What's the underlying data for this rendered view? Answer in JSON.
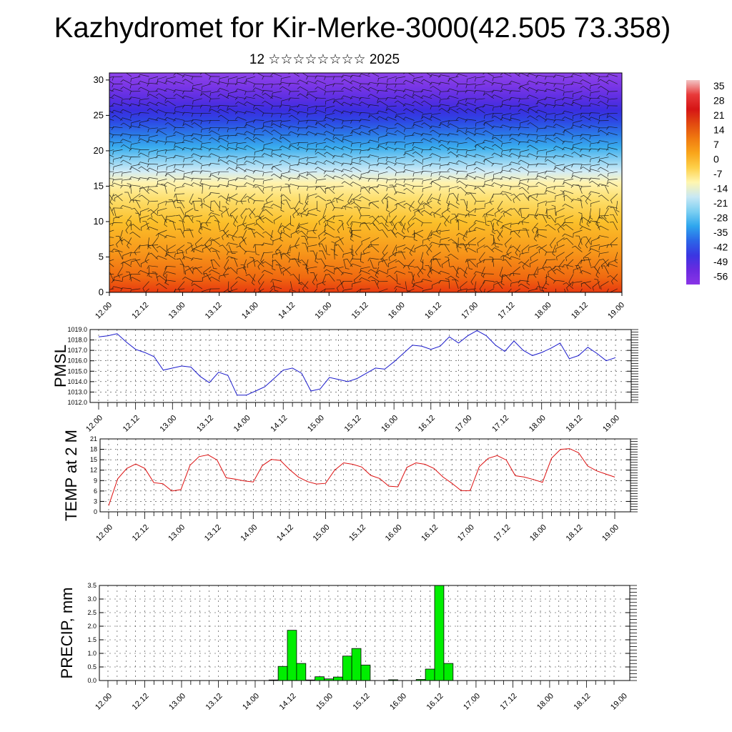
{
  "title": "Kazhydromet for Kir-Merke-3000(42.505 73.358)",
  "subtitle": "12 ☆☆☆☆☆☆☆☆ 2025",
  "colors": {
    "pmsl_line": "#1a1acc",
    "temp_line": "#dd1111",
    "precip_bar": "#00ee00",
    "grid": "#000000"
  },
  "chart_data": [
    {
      "type": "heatmap",
      "name": "cross-section",
      "x_ticks": [
        "12.00",
        "12.12",
        "13.00",
        "13.12",
        "14.00",
        "14.12",
        "15.00",
        "15.12",
        "16.00",
        "16.12",
        "17.00",
        "17.12",
        "18.00",
        "18.12",
        "19.00"
      ],
      "y_ticks": [
        "0",
        "5",
        "10",
        "15",
        "20",
        "25",
        "30"
      ],
      "ylim": [
        0,
        31
      ],
      "colorbar": {
        "labels": [
          "35",
          "28",
          "21",
          "14",
          "7",
          "0",
          "-7",
          "-14",
          "-21",
          "-28",
          "-35",
          "-42",
          "-49",
          "-56"
        ],
        "stops": [
          "#f2c4c4",
          "#e83a3a",
          "#d51515",
          "#e24a10",
          "#f07a10",
          "#f9a51a",
          "#fdd04a",
          "#fff6b0",
          "#c8e8f4",
          "#7ccff2",
          "#2ea6ee",
          "#2b66e8",
          "#3a36e2",
          "#6a2ae0",
          "#8a34e6"
        ]
      },
      "wind_barbs": true
    },
    {
      "type": "line",
      "name": "pmsl",
      "ylabel": "PMSL",
      "ylim": [
        1012,
        1019
      ],
      "y_ticks": [
        "1012.0",
        "1013.0",
        "1014.0",
        "1015.0",
        "1016.0",
        "1017.0",
        "1018.0",
        "1019.0"
      ],
      "x_ticks": [
        "12.00",
        "12.12",
        "13.00",
        "13.12",
        "14.00",
        "14.12",
        "15.00",
        "15.12",
        "16.00",
        "16.12",
        "17.00",
        "17.12",
        "18.00",
        "18.12",
        "19.00"
      ],
      "x_step_hours": 3,
      "values": [
        1018.3,
        1018.4,
        1018.6,
        1017.8,
        1017.1,
        1016.8,
        1016.4,
        1015.1,
        1015.3,
        1015.5,
        1015.4,
        1014.5,
        1013.9,
        1014.9,
        1014.6,
        1012.7,
        1012.7,
        1013.1,
        1013.5,
        1014.3,
        1015.1,
        1015.3,
        1014.8,
        1013.1,
        1013.3,
        1014.4,
        1014.2,
        1014.0,
        1014.3,
        1014.8,
        1015.3,
        1015.2,
        1015.9,
        1016.7,
        1017.5,
        1017.4,
        1017.1,
        1017.4,
        1018.3,
        1017.7,
        1018.4,
        1018.9,
        1018.4,
        1017.5,
        1016.9,
        1017.9,
        1017.0,
        1016.5,
        1016.8,
        1017.2,
        1017.7,
        1016.2,
        1016.5,
        1017.3,
        1016.7,
        1016.0,
        1016.3
      ]
    },
    {
      "type": "line",
      "name": "temp",
      "ylabel": "TEMP at 2 M",
      "ylim": [
        0,
        21
      ],
      "y_ticks": [
        "0",
        "3",
        "6",
        "9",
        "12",
        "15",
        "18",
        "21"
      ],
      "x_ticks": [
        "12.00",
        "12.12",
        "13.00",
        "13.12",
        "14.00",
        "14.12",
        "15.00",
        "15.12",
        "16.00",
        "16.12",
        "17.00",
        "17.12",
        "18.00",
        "18.12",
        "19.00"
      ],
      "x_step_hours": 3,
      "values": [
        1.8,
        9.5,
        12.5,
        13.8,
        12.5,
        8.4,
        8.1,
        6.0,
        6.4,
        13.4,
        15.9,
        16.4,
        14.9,
        9.8,
        9.4,
        8.9,
        8.6,
        13.3,
        15.1,
        14.8,
        12.2,
        10.0,
        8.7,
        8.0,
        8.2,
        12.0,
        14.1,
        13.7,
        12.9,
        10.5,
        9.6,
        7.4,
        7.2,
        12.8,
        14.1,
        13.7,
        12.5,
        10.0,
        8.2,
        6.1,
        6.1,
        13.0,
        15.4,
        16.2,
        14.9,
        10.4,
        10.0,
        9.3,
        8.5,
        15.4,
        18.0,
        18.2,
        17.0,
        13.2,
        11.8,
        10.9,
        10.0
      ]
    },
    {
      "type": "bar",
      "name": "precip",
      "ylabel": "PRECIP, mm",
      "ylim": [
        0,
        3.5
      ],
      "y_ticks": [
        "0.0",
        "0.5",
        "1.0",
        "1.5",
        "2.0",
        "2.5",
        "3.0",
        "3.5"
      ],
      "x_ticks": [
        "12.00",
        "12.12",
        "13.00",
        "13.12",
        "14.00",
        "14.12",
        "15.00",
        "15.12",
        "16.00",
        "16.12",
        "17.00",
        "17.12",
        "18.00",
        "18.12",
        "19.00"
      ],
      "x_step_hours": 3,
      "values": [
        0,
        0,
        0,
        0,
        0,
        0,
        0,
        0,
        0,
        0,
        0,
        0,
        0,
        0,
        0,
        0,
        0,
        0,
        0.02,
        0.52,
        1.85,
        0.63,
        0.02,
        0.14,
        0.06,
        0.13,
        0.9,
        1.18,
        0.57,
        0,
        0,
        0.03,
        0,
        0,
        0.04,
        0.42,
        3.5,
        0.63,
        0,
        0,
        0,
        0,
        0,
        0,
        0,
        0,
        0,
        0,
        0,
        0,
        0,
        0,
        0,
        0,
        0,
        0
      ]
    }
  ]
}
